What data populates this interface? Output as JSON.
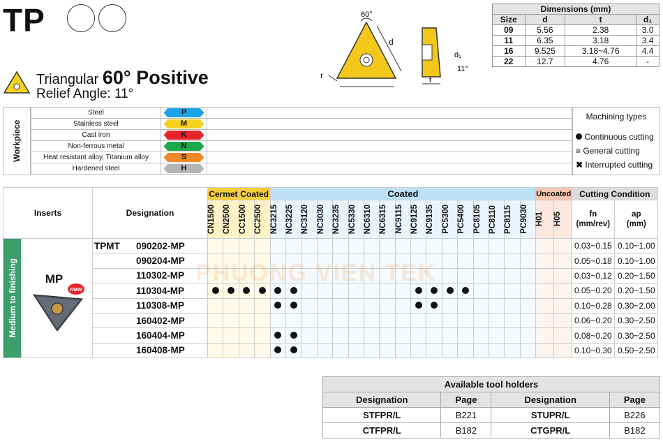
{
  "title": "TP",
  "subtitle": {
    "shape": "Triangular",
    "angle": "60° Positive",
    "relief": "Relief Angle: 11°"
  },
  "diagram": {
    "angle_label": "60°",
    "d_label": "d",
    "r_label": "r",
    "t_label": "t",
    "d1_label": "d₁",
    "relief_label": "11°"
  },
  "dimensions": {
    "title": "Dimensions (mm)",
    "headers": [
      "Size",
      "d",
      "t",
      "d₁"
    ],
    "rows": [
      [
        "09",
        "5.56",
        "2.38",
        "3.0"
      ],
      [
        "11",
        "6.35",
        "3.18",
        "3.4"
      ],
      [
        "16",
        "9.525",
        "3.18~4.76",
        "4.4"
      ],
      [
        "22",
        "12.7",
        "4.76",
        "-"
      ]
    ]
  },
  "workpiece": {
    "label": "Workpiece",
    "rows": [
      {
        "name": "Steel",
        "code": "P",
        "color": "#1aa3e8"
      },
      {
        "name": "Stainless steel",
        "code": "M",
        "color": "#f5d21f"
      },
      {
        "name": "Cast iron",
        "code": "K",
        "color": "#e8242b"
      },
      {
        "name": "Non-ferrous metal",
        "code": "N",
        "color": "#19a84a"
      },
      {
        "name": "Heat resistant alloy, Titanium alloy",
        "code": "S",
        "color": "#f0892a"
      },
      {
        "name": "Hardened steel",
        "code": "H",
        "color": "#b5b5b5"
      }
    ]
  },
  "machining_types": {
    "title": "Machining types",
    "items": [
      "Continuous cutting",
      "General cutting",
      "Interrupted cutting"
    ]
  },
  "main_table": {
    "inserts_header": "Inserts",
    "designation_header": "Designation",
    "groups": {
      "cermet": "Cermet",
      "coated1": "Coated",
      "coated2": "Coated",
      "uncoated": "Uncoated",
      "cutting": "Cutting Condition"
    },
    "grades": [
      "CN1500",
      "CN2500",
      "CC1500",
      "CC2500",
      "NC3215",
      "NC3225",
      "NC3120",
      "NC3030",
      "NC3235",
      "NC5330",
      "NC6310",
      "NC6315",
      "NC9115",
      "NC9125",
      "NC9135",
      "PC5300",
      "PC5400",
      "PC8105",
      "PC8110",
      "PC8115",
      "PC9030",
      "H01",
      "H05"
    ],
    "fn_header": "fn\n(mm/rev)",
    "ap_header": "ap\n(mm)",
    "fn_label": "fn",
    "fn_unit": "(mm/rev)",
    "ap_label": "ap",
    "ap_unit": "(mm)",
    "side_label": "Medium to finishing",
    "insert_name": "MP",
    "new_badge": "new",
    "series": "TPMT",
    "rows": [
      {
        "code": "090202-MP",
        "fn": "0.03~0.15",
        "ap": "0.10~1.00",
        "dots": []
      },
      {
        "code": "090204-MP",
        "fn": "0.05~0.18",
        "ap": "0.10~1.00",
        "dots": []
      },
      {
        "code": "110302-MP",
        "fn": "0.03~0.12",
        "ap": "0.20~1.50",
        "dots": []
      },
      {
        "code": "110304-MP",
        "fn": "0.05~0.20",
        "ap": "0.20~1.50",
        "dots": [
          0,
          1,
          2,
          3,
          4,
          5,
          13,
          14,
          15,
          16
        ]
      },
      {
        "code": "110308-MP",
        "fn": "0.10~0.28",
        "ap": "0.30~2.00",
        "dots": [
          4,
          5,
          13,
          14
        ]
      },
      {
        "code": "160402-MP",
        "fn": "0.06~0.20",
        "ap": "0.30~2.50",
        "dots": []
      },
      {
        "code": "160404-MP",
        "fn": "0.08~0.20",
        "ap": "0.30~2.50",
        "dots": [
          4,
          5
        ]
      },
      {
        "code": "160408-MP",
        "fn": "0.10~0.30",
        "ap": "0.50~2.50",
        "dots": [
          4,
          5
        ]
      }
    ]
  },
  "holders": {
    "title": "Available tool holders",
    "headers": [
      "Designation",
      "Page",
      "Designation",
      "Page"
    ],
    "rows": [
      [
        "STFPR/L",
        "B221",
        "STUPR/L",
        "B226"
      ],
      [
        "CTFPR/L",
        "B182",
        "CTGPR/L",
        "B182"
      ]
    ]
  },
  "watermark": "PHUONG VIEN TEK"
}
